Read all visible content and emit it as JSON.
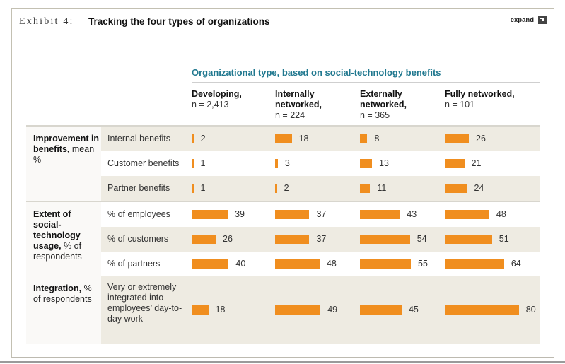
{
  "header": {
    "exhibit_label": "Exhibit 4:",
    "title": "Tracking the four types of organizations",
    "expand_label": "expand",
    "expand_icon": "expand-icon"
  },
  "colors": {
    "bar": "#f08e1f",
    "group_title": "#20788f",
    "row_shade": "#eeebe2"
  },
  "chart_data": {
    "type": "table",
    "title": "Tracking the four types of organizations",
    "group_title": "Organizational type, based on social-technology benefits",
    "columns": [
      {
        "name": "Developing,",
        "n": "n = 2,413"
      },
      {
        "name": "Internally networked,",
        "n": "n = 224"
      },
      {
        "name": "Externally networked,",
        "n": "n = 365"
      },
      {
        "name": "Fully networked,",
        "n": "n = 101"
      }
    ],
    "sections": [
      {
        "label_bold": "Improvement in benefits,",
        "label_rest": "mean %",
        "rows": [
          {
            "label": "Internal benefits",
            "values": [
              2,
              18,
              8,
              26
            ]
          },
          {
            "label": "Customer benefits",
            "values": [
              1,
              3,
              13,
              21
            ]
          },
          {
            "label": "Partner benefits",
            "values": [
              1,
              2,
              11,
              24
            ]
          }
        ]
      },
      {
        "label_bold": "Extent of social-technology usage,",
        "label_rest": "% of respondents",
        "rows": [
          {
            "label": "% of employees",
            "values": [
              39,
              37,
              43,
              48
            ]
          },
          {
            "label": "% of customers",
            "values": [
              26,
              37,
              54,
              51
            ]
          },
          {
            "label": "% of partners",
            "values": [
              40,
              48,
              55,
              64
            ]
          }
        ]
      },
      {
        "label_bold": "Integration,",
        "label_rest": "% of respondents",
        "rows": [
          {
            "label": "Very or extremely integrated into employees’ day-to-day work",
            "values": [
              18,
              49,
              45,
              80
            ]
          }
        ]
      }
    ]
  }
}
